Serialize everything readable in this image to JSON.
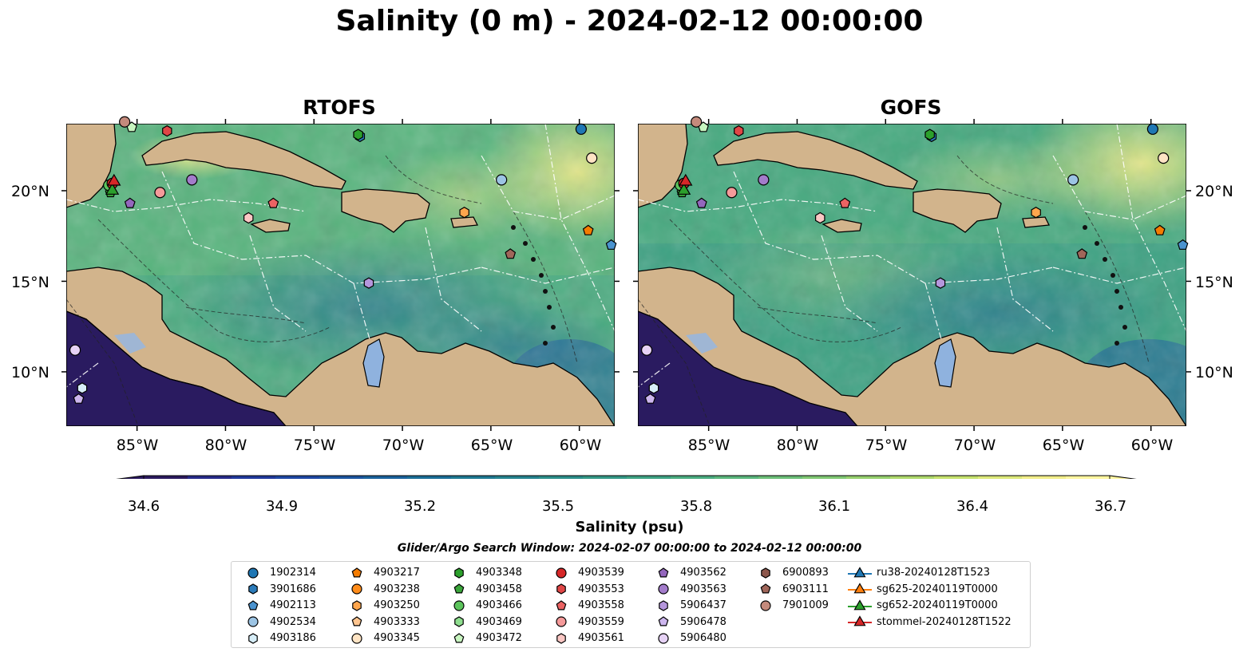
{
  "title": "Salinity (0 m) - 2024-02-12 00:00:00",
  "panels": [
    {
      "title": "RTOFS",
      "variant": "rtofs"
    },
    {
      "title": "GOFS",
      "variant": "gofs"
    }
  ],
  "lat_labels": [
    "20°N",
    "15°N",
    "10°N"
  ],
  "lon_labels": [
    "85°W",
    "80°W",
    "75°W",
    "70°W",
    "65°W",
    "60°W"
  ],
  "colorbar": {
    "label": "Salinity (psu)",
    "ticks": [
      "34.6",
      "34.9",
      "35.2",
      "35.5",
      "35.8",
      "36.1",
      "36.4",
      "36.7"
    ],
    "vmin": 34.6,
    "vmax": 36.7,
    "colors": [
      "#2b1a5e",
      "#272b8a",
      "#21399c",
      "#1f47a3",
      "#1c55a0",
      "#1a629c",
      "#1b6e97",
      "#1f7992",
      "#25838e",
      "#2c8e8a",
      "#349886",
      "#3ea283",
      "#4aac80",
      "#5ab67c",
      "#6cbf78",
      "#80c873",
      "#96d06e",
      "#aed96c",
      "#c6e26e",
      "#dde97a",
      "#f2ee8a",
      "#fff6a0"
    ]
  },
  "search_window": "Glider/Argo Search Window: 2024-02-07 00:00:00 to 2024-02-12 00:00:00",
  "legend": [
    {
      "label": "1902314",
      "marker": "circle",
      "color": "#1f77b4"
    },
    {
      "label": "3901686",
      "marker": "hexagon",
      "color": "#2b7bba"
    },
    {
      "label": "4902113",
      "marker": "pentagon",
      "color": "#4a93cf"
    },
    {
      "label": "4902534",
      "marker": "circle",
      "color": "#9cc4e4"
    },
    {
      "label": "4903186",
      "marker": "hexagon",
      "color": "#d7eef8"
    },
    {
      "label": "4903217",
      "marker": "pentagon",
      "color": "#f57c00"
    },
    {
      "label": "4903238",
      "marker": "circle",
      "color": "#ff8c1a"
    },
    {
      "label": "4903250",
      "marker": "hexagon",
      "color": "#ffa64d"
    },
    {
      "label": "4903333",
      "marker": "pentagon",
      "color": "#ffc58f"
    },
    {
      "label": "4903345",
      "marker": "circle",
      "color": "#ffe4c4"
    },
    {
      "label": "4903348",
      "marker": "hexagon",
      "color": "#2ca02c"
    },
    {
      "label": "4903458",
      "marker": "pentagon",
      "color": "#3aa53a"
    },
    {
      "label": "4903466",
      "marker": "circle",
      "color": "#5cc45c"
    },
    {
      "label": "4903469",
      "marker": "hexagon",
      "color": "#8fde8f"
    },
    {
      "label": "4903472",
      "marker": "pentagon",
      "color": "#c8f5c0"
    },
    {
      "label": "4903539",
      "marker": "circle",
      "color": "#d62728"
    },
    {
      "label": "4903553",
      "marker": "hexagon",
      "color": "#e04646"
    },
    {
      "label": "4903558",
      "marker": "pentagon",
      "color": "#eb6363"
    },
    {
      "label": "4903559",
      "marker": "circle",
      "color": "#f59a9a"
    },
    {
      "label": "4903561",
      "marker": "hexagon",
      "color": "#fbc7c4"
    },
    {
      "label": "4903562",
      "marker": "pentagon",
      "color": "#9467bd"
    },
    {
      "label": "4903563",
      "marker": "circle",
      "color": "#a37ccb"
    },
    {
      "label": "5906437",
      "marker": "hexagon",
      "color": "#b596dc"
    },
    {
      "label": "5906478",
      "marker": "pentagon",
      "color": "#cdb6ee"
    },
    {
      "label": "5906480",
      "marker": "circle",
      "color": "#e6d2f5"
    },
    {
      "label": "6900893",
      "marker": "hexagon",
      "color": "#8c564b"
    },
    {
      "label": "6903111",
      "marker": "pentagon",
      "color": "#a0665a"
    },
    {
      "label": "7901009",
      "marker": "circle",
      "color": "#c48a7c"
    },
    {
      "label": "ru38-20240128T1523",
      "marker": "triangle-line",
      "color": "#1f77b4"
    },
    {
      "label": "sg625-20240119T0000",
      "marker": "triangle-line",
      "color": "#ff7f0e"
    },
    {
      "label": "sg652-20240119T0000",
      "marker": "triangle-line",
      "color": "#2ca02c"
    },
    {
      "label": "stommel-20240128T1522",
      "marker": "triangle-line",
      "color": "#d62728"
    }
  ],
  "floats": [
    {
      "id": "1902314",
      "lon": -59.9,
      "lat": 23.4
    },
    {
      "id": "3901686",
      "lon": -72.4,
      "lat": 23.0
    },
    {
      "id": "4902113",
      "lon": -58.2,
      "lat": 17.0
    },
    {
      "id": "4902534",
      "lon": -64.4,
      "lat": 20.6
    },
    {
      "id": "4903186",
      "lon": -88.1,
      "lat": 9.1
    },
    {
      "id": "4903217",
      "lon": -59.5,
      "lat": 17.8
    },
    {
      "id": "4903250",
      "lon": -66.5,
      "lat": 18.8
    },
    {
      "id": "4903345",
      "lon": -59.3,
      "lat": 21.8
    },
    {
      "id": "4903348",
      "lon": -72.5,
      "lat": 23.1
    },
    {
      "id": "4903458",
      "lon": -86.5,
      "lat": 19.9
    },
    {
      "id": "4903466",
      "lon": -86.6,
      "lat": 20.3
    },
    {
      "id": "4903472",
      "lon": -85.3,
      "lat": 23.5
    },
    {
      "id": "4903539",
      "lon": -86.4,
      "lat": 20.4
    },
    {
      "id": "4903553",
      "lon": -83.3,
      "lat": 23.3
    },
    {
      "id": "4903558",
      "lon": -77.3,
      "lat": 19.3
    },
    {
      "id": "4903559",
      "lon": -83.7,
      "lat": 19.9
    },
    {
      "id": "4903561",
      "lon": -78.7,
      "lat": 18.5
    },
    {
      "id": "4903562",
      "lon": -85.4,
      "lat": 19.3
    },
    {
      "id": "4903563",
      "lon": -81.9,
      "lat": 20.6
    },
    {
      "id": "5906437",
      "lon": -71.9,
      "lat": 14.9
    },
    {
      "id": "5906478",
      "lon": -88.3,
      "lat": 8.5
    },
    {
      "id": "5906480",
      "lon": -88.5,
      "lat": 11.2
    },
    {
      "id": "6903111",
      "lon": -63.9,
      "lat": 16.5
    },
    {
      "id": "7901009",
      "lon": -85.7,
      "lat": 23.8
    }
  ],
  "gliders": [
    {
      "id": "sg652-20240119T0000",
      "lon": -86.4,
      "lat": 20.0
    },
    {
      "id": "stommel-20240128T1522",
      "lon": -86.3,
      "lat": 20.5
    }
  ]
}
